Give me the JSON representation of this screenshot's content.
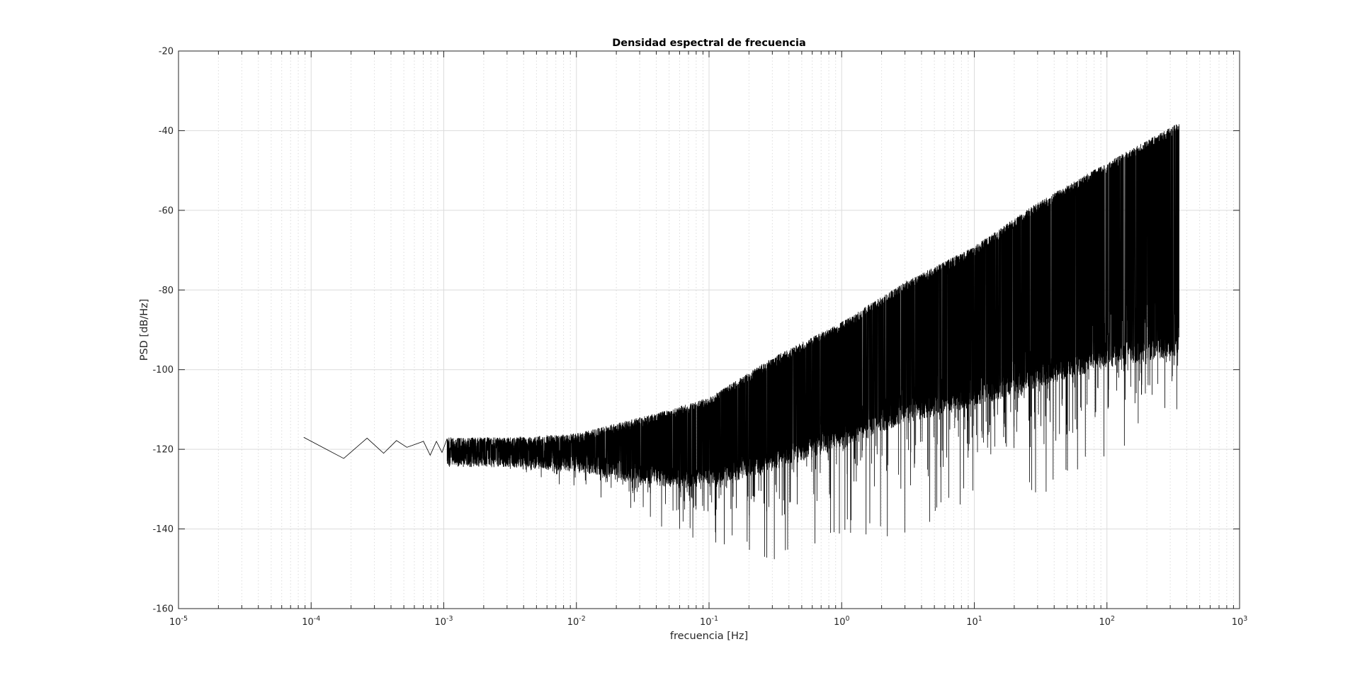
{
  "chart_data": {
    "type": "line",
    "title": "Densidad espectral de frecuencia",
    "xlabel": "frecuencia [Hz]",
    "ylabel": "PSD [dB/Hz]",
    "x_scale": "log",
    "xlim": [
      1e-05,
      1000
    ],
    "ylim": [
      -160,
      -20
    ],
    "grid": true,
    "minor_grid_x": true,
    "line_color": "#000000",
    "x_tick_labels": [
      {
        "base": "10",
        "exp": "-5"
      },
      {
        "base": "10",
        "exp": "-4"
      },
      {
        "base": "10",
        "exp": "-3"
      },
      {
        "base": "10",
        "exp": "-2"
      },
      {
        "base": "10",
        "exp": "-1"
      },
      {
        "base": "10",
        "exp": "0"
      },
      {
        "base": "10",
        "exp": "1"
      },
      {
        "base": "10",
        "exp": "2"
      },
      {
        "base": "10",
        "exp": "3"
      }
    ],
    "y_ticks": [
      -160,
      -140,
      -120,
      -100,
      -80,
      -60,
      -40,
      -20
    ],
    "series": [
      {
        "x": [
          8.79e-05,
          0.000176,
          0.000264,
          0.000352,
          0.00044,
          0.000527,
          0.000615,
          0.000703,
          0.00079,
          0.00088,
          0.00097,
          0.00106
        ],
        "y": [
          -117,
          -122.3,
          -117.2,
          -121.0,
          -117.8,
          -119.5,
          -118.7,
          -118.0,
          -121.5,
          -118.0,
          -120.8,
          -117.3
        ],
        "noise_band": {
          "x": [
            0.001,
            0.003,
            0.01,
            0.03,
            0.05,
            0.1,
            0.3,
            1,
            3,
            10,
            30,
            100,
            350
          ],
          "upper": [
            -117,
            -117,
            -116,
            -112,
            -110,
            -107,
            -97,
            -88,
            -78,
            -69,
            -58,
            -48,
            -38
          ],
          "lower": [
            -122,
            -122,
            -123,
            -126,
            -127,
            -127,
            -123,
            -117,
            -111,
            -107,
            -102,
            -97,
            -94
          ],
          "min_spikes": [
            -125,
            -126,
            -130,
            -136,
            -141,
            -143,
            -149,
            -141,
            -143,
            -132,
            -132,
            -122,
            -110
          ]
        }
      }
    ]
  }
}
